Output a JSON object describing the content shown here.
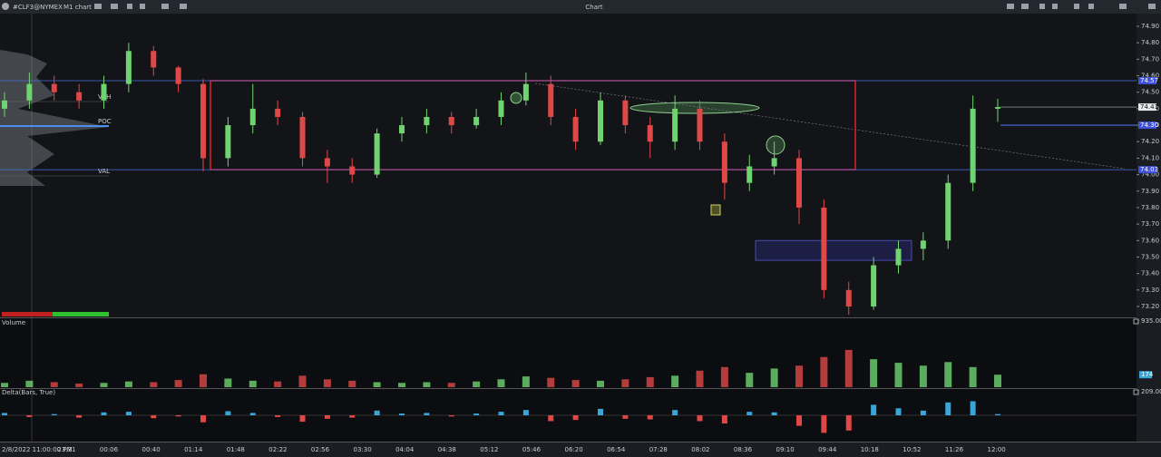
{
  "toolbar": {
    "symbol": "#CLF3@NYMEX",
    "timeframe": "M1 chart",
    "title": "Chart"
  },
  "chart_data": {
    "type": "candlestick",
    "open": [
      74.4,
      74.45,
      74.55,
      74.5,
      74.45,
      74.55,
      74.75,
      74.65,
      74.55,
      74.1,
      74.3,
      74.4,
      74.35,
      74.1,
      74.05,
      74.0,
      74.25,
      74.3,
      74.35,
      74.3,
      74.35,
      74.45,
      74.55,
      74.35,
      74.2,
      74.45,
      74.3,
      74.2,
      74.4,
      74.2,
      73.95,
      74.05,
      74.1,
      73.8,
      73.3,
      73.2,
      73.45,
      73.55,
      73.6,
      73.95,
      74.4
    ],
    "high": [
      74.5,
      74.62,
      74.6,
      74.55,
      74.6,
      74.8,
      74.78,
      74.66,
      74.58,
      74.35,
      74.55,
      74.45,
      74.38,
      74.15,
      74.1,
      74.28,
      74.35,
      74.4,
      74.38,
      74.4,
      74.5,
      74.62,
      74.6,
      74.4,
      74.5,
      74.48,
      74.35,
      74.48,
      74.45,
      74.25,
      74.12,
      74.2,
      74.15,
      73.85,
      73.35,
      73.5,
      73.6,
      73.65,
      74.0,
      74.48,
      74.46
    ],
    "low": [
      74.35,
      74.4,
      74.45,
      74.4,
      74.4,
      74.5,
      74.6,
      74.5,
      74.02,
      74.05,
      74.25,
      74.3,
      74.05,
      73.95,
      73.95,
      73.98,
      74.2,
      74.25,
      74.25,
      74.28,
      74.3,
      74.42,
      74.3,
      74.15,
      74.18,
      74.25,
      74.1,
      74.15,
      74.15,
      73.85,
      73.9,
      74.0,
      73.7,
      73.25,
      73.15,
      73.18,
      73.4,
      73.48,
      73.55,
      73.9,
      74.32
    ],
    "close": [
      74.45,
      74.55,
      74.5,
      74.45,
      74.55,
      74.75,
      74.65,
      74.55,
      74.1,
      74.3,
      74.4,
      74.35,
      74.1,
      74.05,
      74.0,
      74.25,
      74.3,
      74.35,
      74.3,
      74.35,
      74.45,
      74.55,
      74.35,
      74.2,
      74.45,
      74.3,
      74.2,
      74.4,
      74.2,
      73.95,
      74.05,
      74.1,
      73.8,
      73.3,
      73.2,
      73.45,
      73.55,
      73.6,
      73.95,
      74.4,
      74.41
    ],
    "up_color": "#6fd46f",
    "down_color": "#e04848",
    "ylim": [
      73.134,
      74.977
    ],
    "yticks": [
      {
        "value": 73.2,
        "label": "73.20"
      },
      {
        "value": 73.3,
        "label": "73.30"
      },
      {
        "value": 73.4,
        "label": "73.40"
      },
      {
        "value": 73.5,
        "label": "73.50"
      },
      {
        "value": 73.6,
        "label": "73.60"
      },
      {
        "value": 73.7,
        "label": "73.70"
      },
      {
        "value": 73.8,
        "label": "73.80"
      },
      {
        "value": 73.9,
        "label": "73.90"
      },
      {
        "value": 74.0,
        "label": "74.00"
      },
      {
        "value": 74.1,
        "label": "74.10"
      },
      {
        "value": 74.2,
        "label": "74.20"
      },
      {
        "value": 74.3,
        "label": "74.30"
      },
      {
        "value": 74.4,
        "label": "74.40"
      },
      {
        "value": 74.5,
        "label": "74.50"
      },
      {
        "value": 74.6,
        "label": "74.60"
      },
      {
        "value": 74.7,
        "label": "74.70"
      },
      {
        "value": 74.8,
        "label": "74.80"
      },
      {
        "value": 74.9,
        "label": "74.90"
      }
    ],
    "start_label": "2/8/2022 11:00:00 PM",
    "x_labels": [
      "23:31",
      "00:06",
      "00:40",
      "01:14",
      "01:48",
      "02:22",
      "02:56",
      "03:30",
      "04:04",
      "04:38",
      "05:12",
      "05:46",
      "06:20",
      "06:54",
      "07:28",
      "08:02",
      "08:36",
      "09:10",
      "09:44",
      "10:18",
      "10:52",
      "11:26",
      "12:00"
    ],
    "profile_labels": [
      "VAH",
      "POC",
      "VAL"
    ],
    "price_tags": [
      {
        "value": 74.57,
        "label": "74.57"
      },
      {
        "value": 74.41,
        "label": "74.41"
      },
      {
        "value": 74.3,
        "label": "74.30"
      },
      {
        "value": 74.03,
        "label": "74.03"
      }
    ],
    "range_box": [
      74.57,
      74.03
    ],
    "zone_box": [
      73.6,
      73.48
    ]
  },
  "volume": {
    "title": "Volume",
    "color": "#e04848",
    "values": [
      60,
      90,
      70,
      50,
      60,
      80,
      70,
      100,
      180,
      120,
      90,
      80,
      160,
      110,
      90,
      70,
      60,
      70,
      60,
      80,
      110,
      150,
      130,
      100,
      90,
      110,
      140,
      160,
      230,
      280,
      200,
      260,
      300,
      420,
      520,
      390,
      340,
      300,
      350,
      280,
      174
    ],
    "ylim": [
      0,
      935
    ],
    "top_tick": {
      "value": 935,
      "label": "935.00"
    },
    "last_value": 174
  },
  "delta": {
    "title": "Delta(Bars, True)",
    "up_color": "#3aa6d8",
    "down_color": "#e04848",
    "values": [
      20,
      -15,
      10,
      -20,
      25,
      30,
      -25,
      -10,
      -60,
      35,
      20,
      -15,
      -55,
      -30,
      -20,
      40,
      15,
      20,
      -10,
      15,
      30,
      45,
      -50,
      -40,
      55,
      -30,
      -35,
      45,
      -50,
      -70,
      30,
      25,
      -90,
      -150,
      -130,
      90,
      60,
      40,
      110,
      120,
      10
    ],
    "ylim": [
      -209,
      209
    ],
    "top_tick": {
      "value": 209,
      "label": "209.00"
    }
  }
}
